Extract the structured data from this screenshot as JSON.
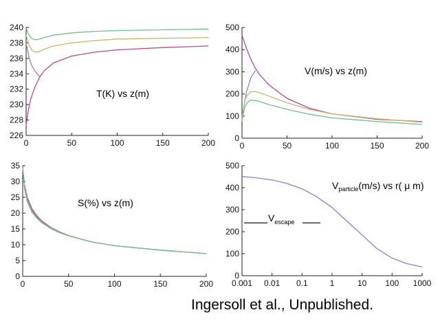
{
  "chart_data": [
    {
      "type": "line",
      "label": "T(K) vs z(m)",
      "xlim": [
        0,
        200
      ],
      "ylim": [
        226,
        240
      ],
      "xticks": [
        0,
        50,
        100,
        150,
        200
      ],
      "yticks": [
        226,
        228,
        230,
        232,
        234,
        236,
        238,
        240
      ],
      "series": [
        {
          "color": "#6fbf8f",
          "x": [
            0,
            3,
            6,
            10,
            15,
            20,
            30,
            50,
            75,
            100,
            150,
            200
          ],
          "y": [
            239.9,
            239.0,
            238.6,
            238.4,
            238.5,
            238.7,
            239.0,
            239.3,
            239.5,
            239.6,
            239.7,
            239.8
          ]
        },
        {
          "color": "#c8b46a",
          "x": [
            0,
            3,
            6,
            10,
            15,
            20,
            30,
            50,
            75,
            100,
            150,
            200
          ],
          "y": [
            239.0,
            237.8,
            237.1,
            236.8,
            236.9,
            237.2,
            237.6,
            238.0,
            238.3,
            238.5,
            238.6,
            238.7
          ]
        },
        {
          "color": "#8a7fd0",
          "x": [
            0,
            3,
            6,
            10,
            15
          ],
          "y": [
            238.0,
            236.2,
            235.1,
            234.3,
            233.6
          ]
        },
        {
          "color": "#b84a8c",
          "x": [
            0,
            2,
            5,
            10,
            15,
            20,
            30,
            50,
            75,
            100,
            150,
            200
          ],
          "y": [
            227.3,
            229.0,
            230.7,
            232.4,
            233.6,
            234.4,
            235.4,
            236.3,
            236.8,
            237.1,
            237.4,
            237.6
          ]
        }
      ]
    },
    {
      "type": "line",
      "label": "V(m/s) vs z(m)",
      "xlim": [
        0,
        200
      ],
      "ylim": [
        0,
        500
      ],
      "xticks": [
        0,
        50,
        100,
        150,
        200
      ],
      "yticks": [
        0,
        100,
        200,
        300,
        400,
        500
      ],
      "series": [
        {
          "color": "#b84a8c",
          "x": [
            0,
            5,
            10,
            15,
            20,
            30,
            50,
            75,
            100,
            150,
            200
          ],
          "y": [
            465,
            405,
            355,
            315,
            285,
            240,
            180,
            135,
            110,
            85,
            75
          ]
        },
        {
          "color": "#8a7fd0",
          "x": [
            0,
            5,
            10,
            15
          ],
          "y": [
            95,
            210,
            275,
            305
          ]
        },
        {
          "color": "#c8b46a",
          "x": [
            0,
            3,
            6,
            10,
            15,
            20,
            30,
            50,
            75,
            100,
            150,
            200
          ],
          "y": [
            85,
            170,
            195,
            210,
            210,
            205,
            190,
            160,
            130,
            110,
            88,
            72
          ]
        },
        {
          "color": "#6fbf8f",
          "x": [
            0,
            3,
            6,
            10,
            15,
            20,
            30,
            50,
            75,
            100,
            150,
            200
          ],
          "y": [
            75,
            140,
            162,
            172,
            170,
            165,
            152,
            130,
            108,
            92,
            75,
            62
          ]
        }
      ]
    },
    {
      "type": "line",
      "label": "S(%) vs z(m)",
      "xlim": [
        0,
        200
      ],
      "ylim": [
        0,
        35
      ],
      "xticks": [
        0,
        50,
        100,
        150,
        200
      ],
      "yticks": [
        0,
        5,
        10,
        15,
        20,
        25,
        30,
        35
      ],
      "series": [
        {
          "color": "#8a7fd0",
          "x": [
            0,
            2,
            5,
            10,
            15,
            20,
            30,
            40,
            50,
            75,
            100,
            150,
            200
          ],
          "y": [
            34.5,
            29.0,
            25.0,
            21.5,
            19.4,
            17.8,
            15.6,
            14.1,
            12.9,
            10.9,
            9.7,
            8.3,
            7.2
          ]
        },
        {
          "color": "#b84a8c",
          "x": [
            0,
            2,
            5,
            10,
            15,
            20,
            30,
            40,
            50,
            75,
            100,
            150,
            200
          ],
          "y": [
            34.5,
            28.4,
            24.4,
            21.0,
            19.0,
            17.5,
            15.4,
            14.0,
            12.9,
            10.9,
            9.7,
            8.3,
            7.2
          ]
        },
        {
          "color": "#c8b46a",
          "x": [
            0,
            2,
            5,
            10,
            15,
            20,
            30,
            40,
            50,
            75,
            100,
            150,
            200
          ],
          "y": [
            34.5,
            28.0,
            24.0,
            20.6,
            18.7,
            17.3,
            15.3,
            13.9,
            12.8,
            10.9,
            9.7,
            8.3,
            7.2
          ]
        },
        {
          "color": "#6fbf8f",
          "x": [
            0,
            2,
            5,
            10,
            15,
            20,
            30,
            40,
            50,
            75,
            100,
            150,
            200
          ],
          "y": [
            34.5,
            27.6,
            23.6,
            20.3,
            18.5,
            17.1,
            15.2,
            13.8,
            12.8,
            10.9,
            9.7,
            8.3,
            7.2
          ]
        }
      ]
    },
    {
      "type": "line",
      "label": "Vparticle(m/s) vs r(μm)",
      "label_parts": {
        "v": "V",
        "sub": "particle",
        "rest": "(m/s) vs r( μ m)"
      },
      "annotation": {
        "v": "V",
        "sub": "escape"
      },
      "escape_value": 240,
      "x_scale": "log",
      "xlim": [
        0.001,
        1000
      ],
      "ylim": [
        0,
        500
      ],
      "xticks": [
        0.001,
        0.01,
        0.1,
        1,
        10,
        100,
        1000
      ],
      "xtick_labels": [
        "0.001",
        "0.01",
        "0.1",
        "1",
        "10",
        "100",
        "1000"
      ],
      "yticks": [
        0,
        100,
        200,
        300,
        400,
        500
      ],
      "series": [
        {
          "color": "#8a7fd0",
          "x": [
            0.001,
            0.003,
            0.01,
            0.03,
            0.1,
            0.3,
            1,
            3,
            10,
            30,
            100,
            300,
            1000
          ],
          "y": [
            451,
            445,
            435,
            420,
            395,
            360,
            310,
            250,
            185,
            125,
            80,
            55,
            40
          ]
        }
      ]
    }
  ],
  "credit": "Ingersoll et al., Unpublished."
}
